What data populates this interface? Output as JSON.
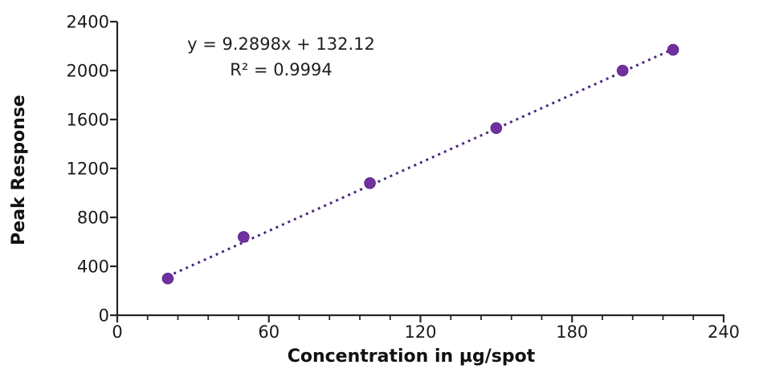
{
  "chart_data": {
    "type": "scatter",
    "title": "",
    "xlabel": "Concentration in µg/spot",
    "ylabel": "Peak Response",
    "xlim": [
      0,
      240
    ],
    "ylim": [
      0,
      2400
    ],
    "x_major_unit": 60,
    "x_minor_unit": 12,
    "y_major_unit": 400,
    "x_ticks": [
      0,
      60,
      120,
      180,
      240
    ],
    "y_ticks": [
      0,
      400,
      800,
      1200,
      1600,
      2000,
      2400
    ],
    "grid": false,
    "legend": false,
    "points": [
      {
        "x": 20,
        "y": 300
      },
      {
        "x": 50,
        "y": 640
      },
      {
        "x": 100,
        "y": 1080
      },
      {
        "x": 150,
        "y": 1530
      },
      {
        "x": 200,
        "y": 2000
      },
      {
        "x": 220,
        "y": 2170
      }
    ],
    "trendline": {
      "style": "dotted",
      "slope": 9.2898,
      "intercept": 132.12,
      "x_start": 20,
      "x_end": 220
    },
    "annotation": {
      "line1": "y = 9.2898x + 132.12",
      "line2": "R² = 0.9994"
    },
    "colors": {
      "marker": "#7030A0",
      "marker_edge": "#5C2786",
      "trendline": "#4C2882",
      "axis": "#262626",
      "text": "#1a1a1a"
    }
  }
}
